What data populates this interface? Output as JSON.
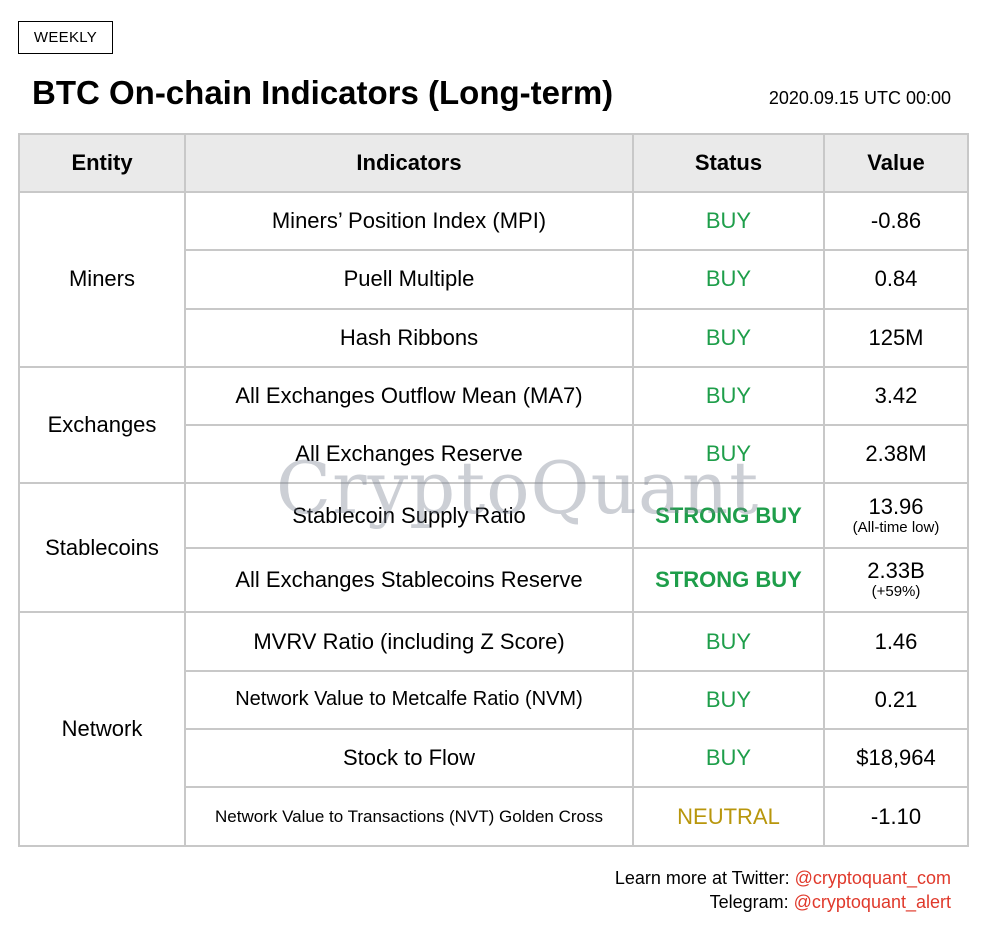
{
  "badge": "WEEKLY",
  "title": "BTC On-chain Indicators (Long-term)",
  "date": "2020.09.15 UTC 00:00",
  "headers": {
    "entity": "Entity",
    "indicators": "Indicators",
    "status": "Status",
    "value": "Value"
  },
  "groups": [
    {
      "entity": "Miners",
      "rows": [
        {
          "indicator": "Miners’ Position Index (MPI)",
          "status": "BUY",
          "value": "-0.86"
        },
        {
          "indicator": "Puell Multiple",
          "status": "BUY",
          "value": "0.84"
        },
        {
          "indicator": "Hash Ribbons",
          "status": "BUY",
          "value": "125M"
        }
      ]
    },
    {
      "entity": "Exchanges",
      "rows": [
        {
          "indicator": "All Exchanges Outflow Mean (MA7)",
          "status": "BUY",
          "value": "3.42"
        },
        {
          "indicator": "All Exchanges Reserve",
          "status": "BUY",
          "value": "2.38M"
        }
      ]
    },
    {
      "entity": "Stablecoins",
      "rows": [
        {
          "indicator": "Stablecoin Supply Ratio",
          "status": "STRONG BUY",
          "value": "13.96",
          "note": "(All-time low)"
        },
        {
          "indicator": "All Exchanges Stablecoins Reserve",
          "status": "STRONG BUY",
          "value": "2.33B",
          "note": "(+59%)"
        }
      ]
    },
    {
      "entity": "Network",
      "rows": [
        {
          "indicator": "MVRV Ratio (including Z Score)",
          "status": "BUY",
          "value": "1.46"
        },
        {
          "indicator": "Network Value to Metcalfe Ratio (NVM)",
          "status": "BUY",
          "value": "0.21"
        },
        {
          "indicator": "Stock to Flow",
          "status": "BUY",
          "value": "$18,964"
        },
        {
          "indicator": "Network Value to Transactions (NVT) Golden Cross",
          "status": "NEUTRAL",
          "value": "-1.10"
        }
      ]
    }
  ],
  "watermark": "CryptoQuant",
  "footer": {
    "twitter_label": "Learn more at Twitter: ",
    "twitter_handle": "@cryptoquant_com",
    "telegram_label": "Telegram: ",
    "telegram_handle": "@cryptoquant_alert"
  },
  "colors": {
    "buy": "#1e9e4a",
    "neutral": "#b8960c",
    "handle": "#e0392b",
    "header_bg": "#eaeaea",
    "border": "#c8c8c8"
  }
}
